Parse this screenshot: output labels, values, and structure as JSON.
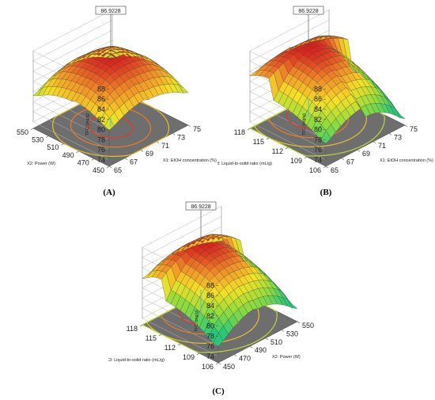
{
  "chart_data": [
    {
      "type": "surface",
      "panel_label": "(A)",
      "zlabel": "TFC (mg/g)",
      "xlabel": "X1: EtOH concentration (%)",
      "ylabel": "X2: Power (W)",
      "z_ticks": [
        74,
        76,
        78,
        80,
        82,
        84,
        86,
        88
      ],
      "zlim": [
        74,
        88
      ],
      "x_ticks": [
        65,
        67,
        69,
        71,
        73,
        75
      ],
      "xlim": [
        65,
        75
      ],
      "y_ticks": [
        450,
        470,
        490,
        510,
        530,
        550
      ],
      "ylim": [
        450,
        550
      ],
      "max_label": "86.9228",
      "max_z": 86.9228,
      "peak": [
        70,
        500
      ],
      "corner_values": {
        "x_lo_y_lo": 81.5,
        "x_hi_y_lo": 81.0,
        "x_hi_y_hi": 80.5,
        "x_lo_y_hi": 81.0
      },
      "min_z": 74.5,
      "contour_levels": 3
    },
    {
      "type": "surface",
      "panel_label": "(B)",
      "zlabel": "TFC (mg/g)",
      "xlabel": "X1: EtOH concentration (%)",
      "ylabel": "X3: Liquid-to-solid ratio (mL/g)",
      "z_ticks": [
        74,
        76,
        78,
        80,
        82,
        84,
        86,
        88
      ],
      "zlim": [
        74,
        88
      ],
      "x_ticks": [
        65,
        67,
        69,
        71,
        73,
        75
      ],
      "xlim": [
        65,
        75
      ],
      "y_ticks": [
        106,
        109,
        112,
        115,
        118
      ],
      "ylim": [
        106,
        118
      ],
      "max_label": "86.9228",
      "max_z": 86.9228,
      "peak": [
        70,
        115
      ],
      "corner_values": {
        "x_lo_y_lo": 79.5,
        "x_hi_y_lo": 77.0,
        "x_hi_y_hi": 83.5,
        "x_lo_y_hi": 84.0
      },
      "min_z": 76.5,
      "contour_levels": 4
    },
    {
      "type": "surface",
      "panel_label": "(C)",
      "zlabel": "TFC (mg/g)",
      "xlabel": "X2: Power (W)",
      "ylabel": "X3: Liquid-to-solid ratio (mL/g)",
      "z_ticks": [
        74,
        76,
        78,
        80,
        82,
        84,
        86,
        88
      ],
      "zlim": [
        74,
        88
      ],
      "x_ticks": [
        450,
        470,
        490,
        510,
        530,
        550
      ],
      "xlim": [
        450,
        550
      ],
      "y_ticks": [
        106,
        109,
        112,
        115,
        118
      ],
      "ylim": [
        106,
        118
      ],
      "max_label": "86.9228",
      "max_z": 86.9228,
      "peak": [
        500,
        115
      ],
      "corner_values": {
        "x_lo_y_lo": 78.5,
        "x_hi_y_lo": 78.0,
        "x_hi_y_hi": 82.5,
        "x_lo_y_hi": 83.0
      },
      "min_z": 77.5,
      "contour_levels": 4
    }
  ]
}
